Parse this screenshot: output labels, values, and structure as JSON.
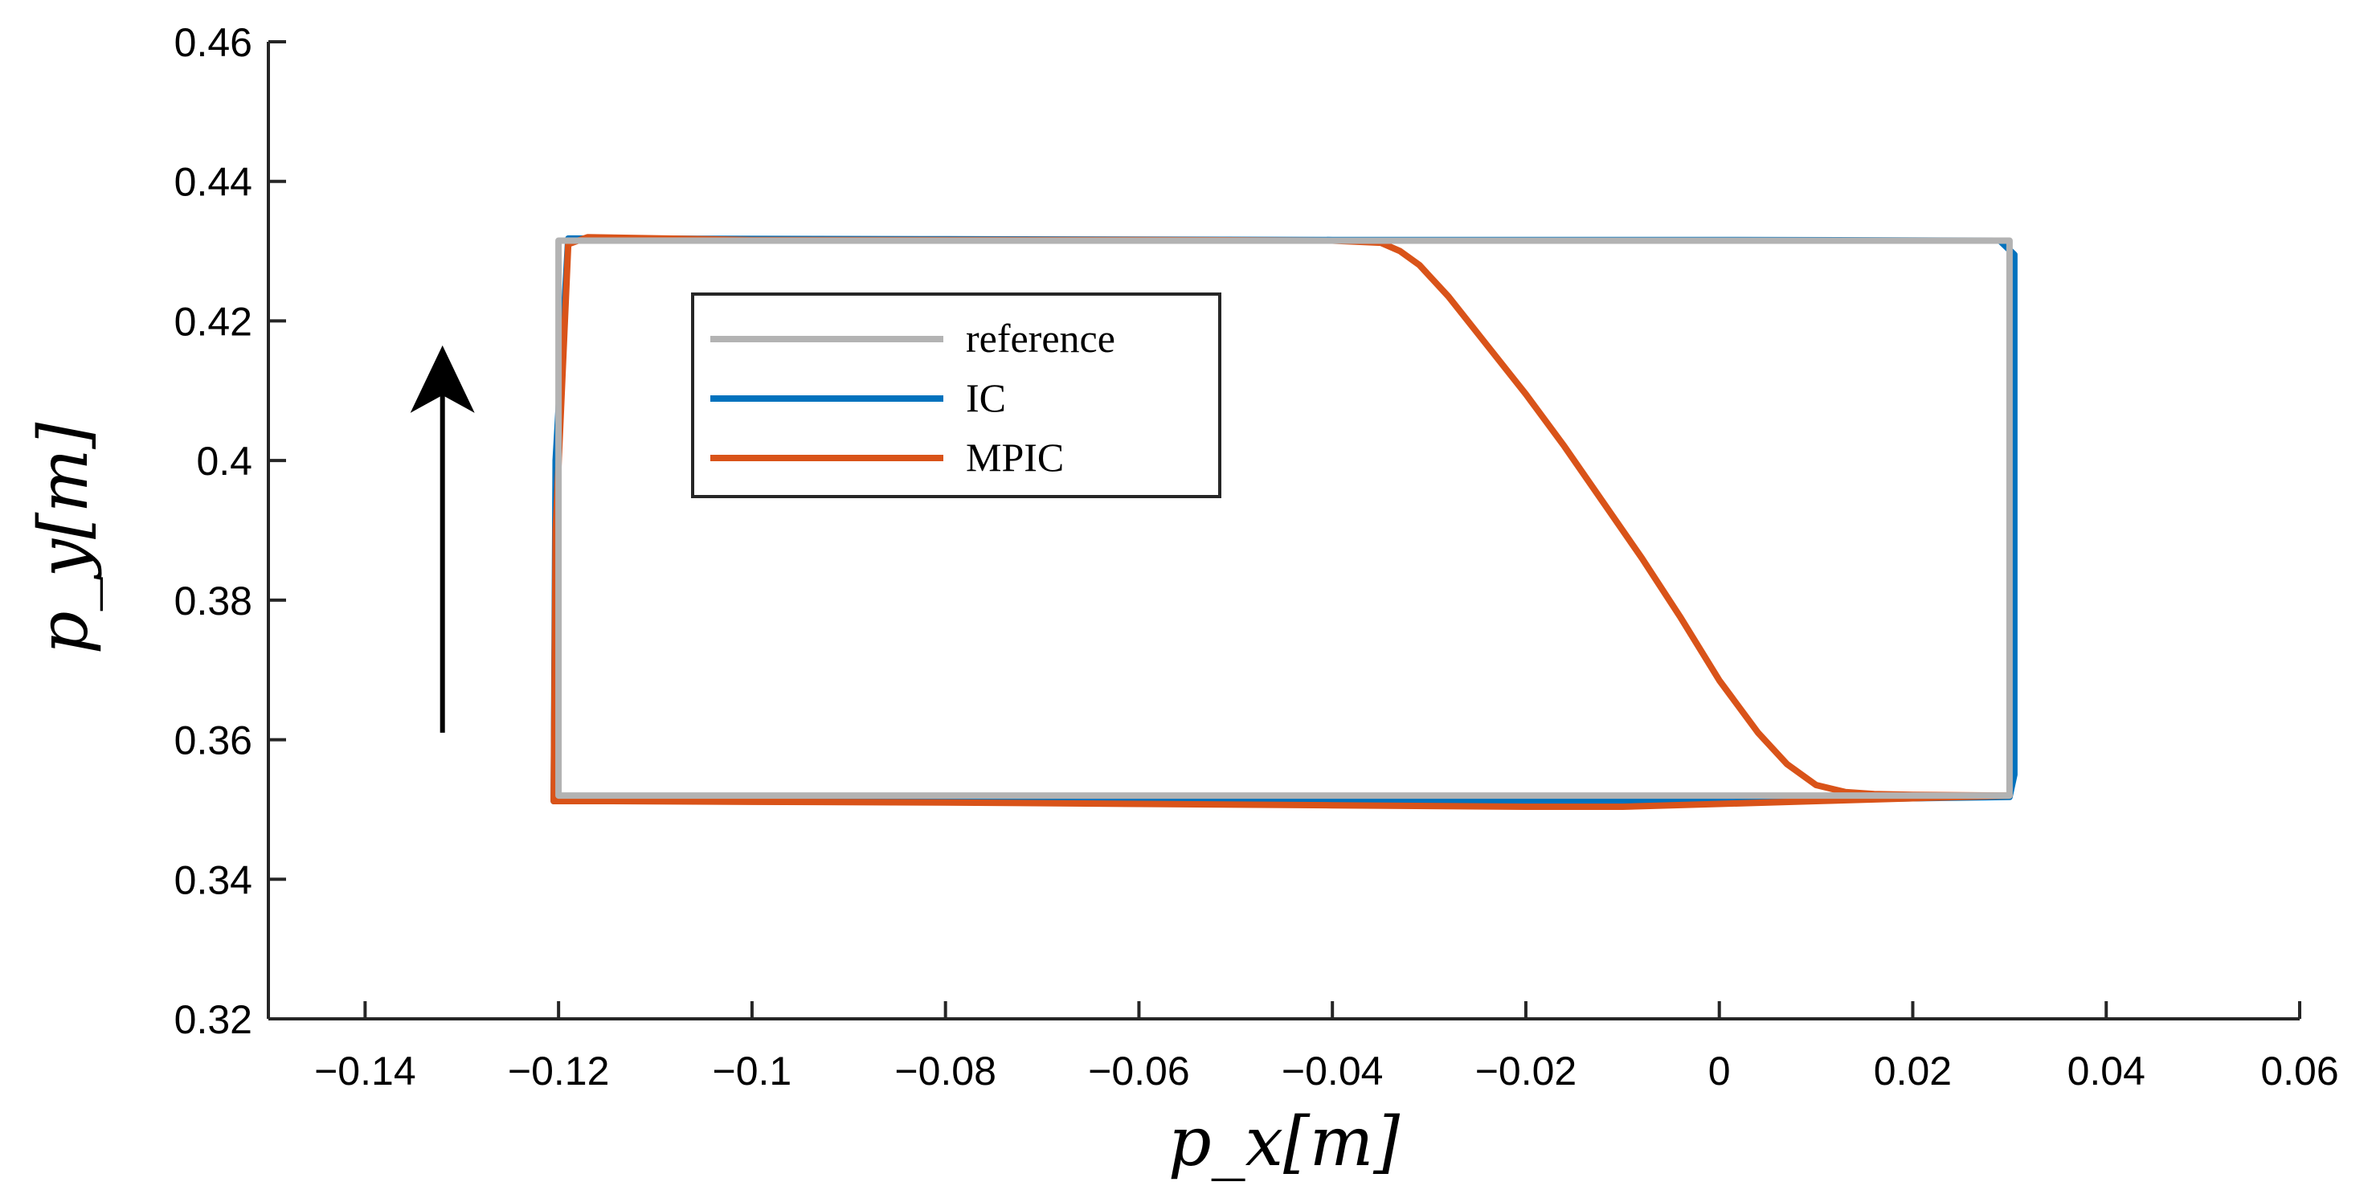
{
  "chart_data": {
    "type": "line",
    "xlabel": "p_x[m]",
    "ylabel": "p_y[m]",
    "xlim": [
      -0.15,
      0.06
    ],
    "ylim": [
      0.32,
      0.46
    ],
    "x_ticks": [
      -0.14,
      -0.12,
      -0.1,
      -0.08,
      -0.06,
      -0.04,
      -0.02,
      0,
      0.02,
      0.04,
      0.06
    ],
    "x_tick_labels": [
      "−0.14",
      "−0.12",
      "−0.1",
      "−0.08",
      "−0.06",
      "−0.04",
      "−0.02",
      "0",
      "0.02",
      "0.04",
      "0.06"
    ],
    "y_ticks": [
      0.32,
      0.34,
      0.36,
      0.38,
      0.4,
      0.42,
      0.44,
      0.46
    ],
    "y_tick_labels": [
      "0.32",
      "0.34",
      "0.36",
      "0.38",
      "0.4",
      "0.42",
      "0.44",
      "0.46"
    ],
    "grid": false,
    "legend_position": "upper-left inside",
    "series": [
      {
        "name": "reference",
        "color": "#b3b3b3",
        "x": [
          -0.12,
          -0.12,
          0.03,
          0.03,
          -0.12
        ],
        "y": [
          0.352,
          0.4315,
          0.4315,
          0.352,
          0.352
        ]
      },
      {
        "name": "IC",
        "color": "#0072bd",
        "x": [
          -0.1205,
          -0.1203,
          -0.119,
          -0.08,
          -0.04,
          0.0,
          0.029,
          0.0305,
          0.0305,
          0.03,
          0.02,
          0.0,
          -0.04,
          -0.08,
          -0.11,
          -0.1205
        ],
        "y": [
          0.3512,
          0.4,
          0.4318,
          0.4317,
          0.4316,
          0.4316,
          0.4315,
          0.4295,
          0.355,
          0.3518,
          0.3516,
          0.3512,
          0.3513,
          0.3512,
          0.3512,
          0.3512
        ]
      },
      {
        "name": "MPIC",
        "color": "#d95319",
        "x": [
          -0.1205,
          -0.1203,
          -0.119,
          -0.117,
          -0.1,
          -0.08,
          -0.06,
          -0.04,
          -0.035,
          -0.033,
          -0.031,
          -0.028,
          -0.024,
          -0.02,
          -0.016,
          -0.012,
          -0.008,
          -0.004,
          0.0,
          0.004,
          0.007,
          0.01,
          0.013,
          0.016,
          0.02,
          0.029,
          0.03,
          0.02,
          0.01,
          0.0,
          -0.01,
          -0.02,
          -0.04,
          -0.06,
          -0.08,
          -0.1,
          -0.115,
          -0.1205
        ],
        "y": [
          0.3512,
          0.39,
          0.431,
          0.432,
          0.4316,
          0.4316,
          0.4316,
          0.4315,
          0.4312,
          0.43,
          0.428,
          0.4235,
          0.4165,
          0.4095,
          0.402,
          0.394,
          0.386,
          0.3775,
          0.3685,
          0.361,
          0.3565,
          0.3535,
          0.3525,
          0.3522,
          0.3521,
          0.352,
          0.352,
          0.3516,
          0.3512,
          0.3508,
          0.3504,
          0.3504,
          0.3506,
          0.3508,
          0.351,
          0.3511,
          0.3512,
          0.3512
        ]
      }
    ],
    "annotation": {
      "type": "arrow-up",
      "x": -0.132,
      "y_from": 0.361,
      "y_to": 0.4165,
      "color": "#000000"
    }
  }
}
